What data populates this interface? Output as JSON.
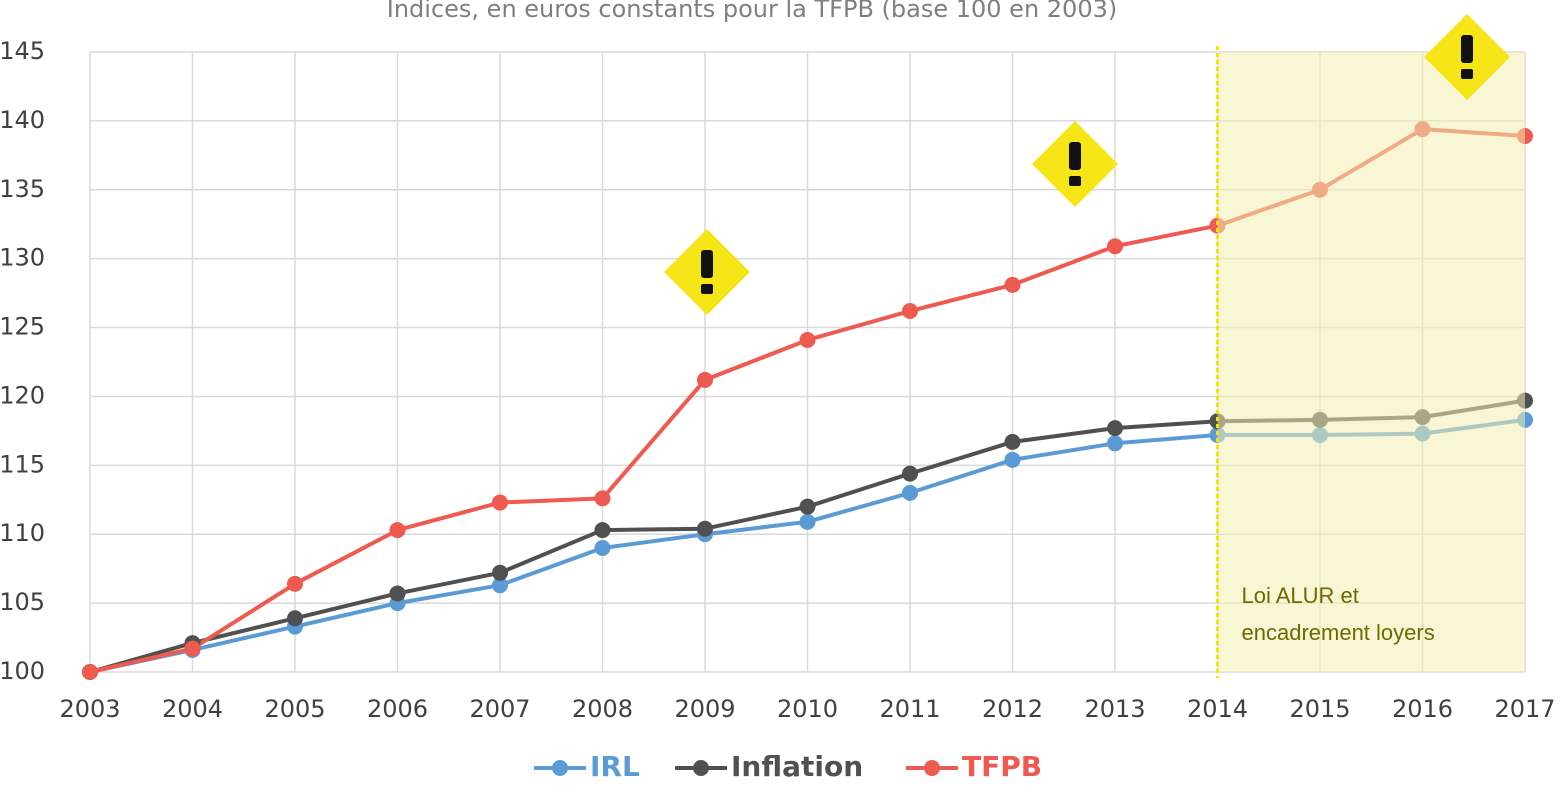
{
  "chart_data": {
    "type": "line",
    "title": "Indices, en euros constants pour la TFPB  (base 100 en 2003)",
    "x": [
      2003,
      2004,
      2005,
      2006,
      2007,
      2008,
      2009,
      2010,
      2011,
      2012,
      2013,
      2014,
      2015,
      2016,
      2017
    ],
    "xlim": [
      2003,
      2017
    ],
    "xticks": [
      2003,
      2004,
      2005,
      2006,
      2007,
      2008,
      2009,
      2010,
      2011,
      2012,
      2013,
      2014,
      2015,
      2016,
      2017
    ],
    "ylim": [
      100,
      145
    ],
    "yticks": [
      100,
      105,
      110,
      115,
      120,
      125,
      130,
      135,
      140,
      145
    ],
    "grid": true,
    "legend": "bottom",
    "series": [
      {
        "name": "IRL",
        "color": "#5b9bd5",
        "values": [
          100,
          101.6,
          103.3,
          105.0,
          106.3,
          109.0,
          110.0,
          110.9,
          113.0,
          115.4,
          116.6,
          117.2,
          117.2,
          117.3,
          118.3
        ]
      },
      {
        "name": "Inflation",
        "color": "#505050",
        "values": [
          100,
          102.1,
          103.9,
          105.7,
          107.2,
          110.3,
          110.4,
          112.0,
          114.4,
          116.7,
          117.7,
          118.2,
          118.3,
          118.5,
          119.7
        ]
      },
      {
        "name": "TFPB",
        "color": "#ee5a50",
        "values": [
          100,
          101.7,
          106.4,
          110.3,
          112.3,
          112.6,
          121.2,
          124.1,
          126.2,
          128.1,
          130.9,
          132.4,
          135.0,
          139.4,
          138.9
        ]
      }
    ],
    "highlight": {
      "from": 2014,
      "to": 2017,
      "color": "#f2efb0",
      "label": [
        "Loi ALUR et",
        "encadrement loyers"
      ]
    }
  }
}
